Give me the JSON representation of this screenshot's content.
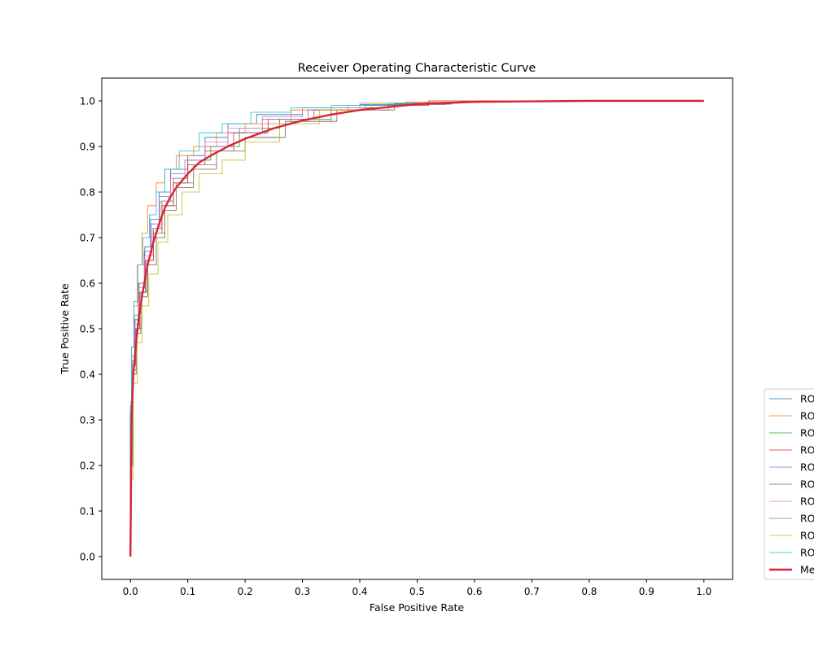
{
  "chart_data": {
    "type": "line",
    "title": "Receiver Operating Characteristic Curve",
    "xlabel": "False Positive Rate",
    "ylabel": "True Positive Rate",
    "xlim": [
      -0.05,
      1.05
    ],
    "ylim": [
      -0.05,
      1.05
    ],
    "xticks": [
      "0.0",
      "0.1",
      "0.2",
      "0.3",
      "0.4",
      "0.5",
      "0.6",
      "0.7",
      "0.8",
      "0.9",
      "1.0"
    ],
    "yticks": [
      "0.0",
      "0.1",
      "0.2",
      "0.3",
      "0.4",
      "0.5",
      "0.6",
      "0.7",
      "0.8",
      "0.9",
      "1.0"
    ],
    "grid": false,
    "legend": "lower-right, outside the axes and clipped at the right edge",
    "series": [
      {
        "name": "RO",
        "color": "#1f77b4",
        "style": "thin-step",
        "x": [
          0,
          0.003,
          0.008,
          0.015,
          0.025,
          0.035,
          0.05,
          0.07,
          0.1,
          0.13,
          0.17,
          0.22,
          0.3,
          0.4,
          0.5,
          0.57
        ],
        "y": [
          0,
          0.32,
          0.43,
          0.52,
          0.6,
          0.68,
          0.74,
          0.8,
          0.85,
          0.88,
          0.92,
          0.95,
          0.97,
          0.985,
          0.992,
          0.995
        ]
      },
      {
        "name": "RO",
        "color": "#ff7f0e",
        "style": "thin-step",
        "x": [
          0,
          0.002,
          0.006,
          0.012,
          0.02,
          0.03,
          0.045,
          0.06,
          0.08,
          0.11,
          0.15,
          0.2,
          0.28,
          0.38,
          0.48,
          0.6,
          0.7
        ],
        "y": [
          0,
          0.3,
          0.46,
          0.55,
          0.64,
          0.71,
          0.77,
          0.82,
          0.85,
          0.88,
          0.9,
          0.93,
          0.95,
          0.98,
          0.99,
          0.997,
          1.0
        ]
      },
      {
        "name": "RO",
        "color": "#2ca02c",
        "style": "thin-step",
        "x": [
          0,
          0.004,
          0.01,
          0.018,
          0.028,
          0.04,
          0.055,
          0.075,
          0.1,
          0.14,
          0.19,
          0.26,
          0.35,
          0.45,
          0.55
        ],
        "y": [
          0,
          0.2,
          0.4,
          0.5,
          0.58,
          0.65,
          0.72,
          0.78,
          0.83,
          0.87,
          0.9,
          0.94,
          0.96,
          0.985,
          0.995
        ]
      },
      {
        "name": "RO",
        "color": "#d62728",
        "style": "thin-step",
        "x": [
          0,
          0.003,
          0.009,
          0.016,
          0.026,
          0.04,
          0.055,
          0.075,
          0.1,
          0.13,
          0.18,
          0.24,
          0.32,
          0.42,
          0.52,
          0.65
        ],
        "y": [
          0,
          0.3,
          0.42,
          0.5,
          0.58,
          0.65,
          0.71,
          0.77,
          0.82,
          0.86,
          0.89,
          0.93,
          0.96,
          0.98,
          0.99,
          1.0
        ]
      },
      {
        "name": "RO",
        "color": "#9467bd",
        "style": "thin-step",
        "x": [
          0,
          0.002,
          0.007,
          0.014,
          0.024,
          0.036,
          0.05,
          0.07,
          0.095,
          0.13,
          0.17,
          0.23,
          0.31,
          0.41,
          0.5
        ],
        "y": [
          0,
          0.33,
          0.44,
          0.53,
          0.6,
          0.67,
          0.73,
          0.79,
          0.84,
          0.87,
          0.9,
          0.93,
          0.96,
          0.98,
          0.99
        ]
      },
      {
        "name": "RO",
        "color": "#8c564b",
        "style": "thin-step",
        "x": [
          0,
          0.004,
          0.01,
          0.018,
          0.03,
          0.045,
          0.06,
          0.08,
          0.11,
          0.15,
          0.2,
          0.27,
          0.36,
          0.46,
          0.56
        ],
        "y": [
          0,
          0.31,
          0.41,
          0.49,
          0.57,
          0.64,
          0.7,
          0.76,
          0.81,
          0.85,
          0.89,
          0.92,
          0.955,
          0.98,
          0.993
        ]
      },
      {
        "name": "RO",
        "color": "#e377c2",
        "style": "thin-step",
        "x": [
          0,
          0.003,
          0.008,
          0.015,
          0.025,
          0.038,
          0.052,
          0.07,
          0.095,
          0.13,
          0.17,
          0.23,
          0.3,
          0.4,
          0.5
        ],
        "y": [
          0,
          0.32,
          0.43,
          0.51,
          0.59,
          0.66,
          0.72,
          0.78,
          0.83,
          0.87,
          0.91,
          0.94,
          0.965,
          0.985,
          0.995
        ]
      },
      {
        "name": "RO",
        "color": "#7f7f7f",
        "style": "thin-step",
        "x": [
          0,
          0.004,
          0.01,
          0.02,
          0.03,
          0.045,
          0.06,
          0.08,
          0.11,
          0.15,
          0.2,
          0.27,
          0.35,
          0.45,
          0.55
        ],
        "y": [
          0,
          0.3,
          0.4,
          0.5,
          0.58,
          0.64,
          0.71,
          0.77,
          0.82,
          0.86,
          0.89,
          0.92,
          0.955,
          0.98,
          0.992
        ]
      },
      {
        "name": "RO",
        "color": "#bcbd22",
        "style": "thin-step",
        "x": [
          0,
          0.005,
          0.012,
          0.02,
          0.032,
          0.048,
          0.065,
          0.09,
          0.12,
          0.16,
          0.2,
          0.26,
          0.33,
          0.42,
          0.52
        ],
        "y": [
          0,
          0.17,
          0.38,
          0.47,
          0.55,
          0.62,
          0.69,
          0.75,
          0.8,
          0.84,
          0.87,
          0.91,
          0.95,
          0.98,
          0.995
        ]
      },
      {
        "name": "RO",
        "color": "#17becf",
        "style": "thin-step",
        "x": [
          0,
          0.002,
          0.006,
          0.013,
          0.022,
          0.033,
          0.045,
          0.06,
          0.085,
          0.12,
          0.16,
          0.21,
          0.28,
          0.35,
          0.45,
          0.55
        ],
        "y": [
          0,
          0.34,
          0.46,
          0.56,
          0.64,
          0.7,
          0.75,
          0.8,
          0.85,
          0.89,
          0.93,
          0.95,
          0.975,
          0.985,
          0.99,
          0.995
        ]
      },
      {
        "name": "Me",
        "color": "#d62439",
        "style": "thick-line",
        "x": [
          0,
          0.002,
          0.005,
          0.01,
          0.015,
          0.02,
          0.03,
          0.04,
          0.05,
          0.06,
          0.07,
          0.08,
          0.1,
          0.12,
          0.14,
          0.17,
          0.2,
          0.25,
          0.3,
          0.35,
          0.4,
          0.5,
          0.6,
          0.7,
          0.8,
          0.9,
          1.0
        ],
        "y": [
          0,
          0.3,
          0.4,
          0.47,
          0.53,
          0.57,
          0.64,
          0.69,
          0.73,
          0.765,
          0.79,
          0.81,
          0.84,
          0.865,
          0.88,
          0.9,
          0.917,
          0.94,
          0.957,
          0.97,
          0.98,
          0.993,
          0.998,
          0.999,
          1.0,
          1.0,
          1.0
        ]
      }
    ]
  }
}
